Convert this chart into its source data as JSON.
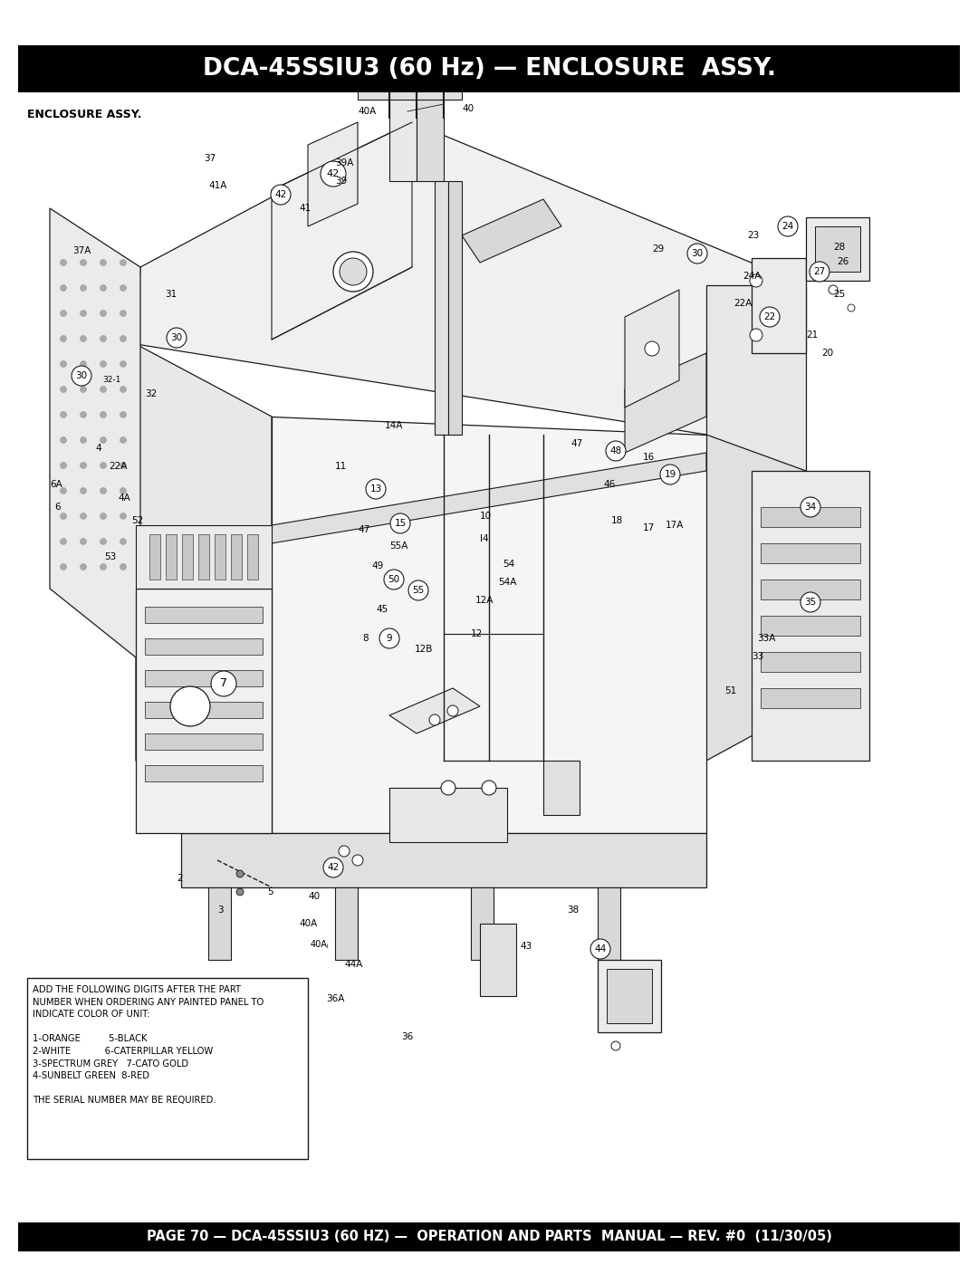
{
  "title": "DCA-45SSIU3 (60 Hz) — ENCLOSURE  ASSY.",
  "title_bg": "#000000",
  "title_color": "#ffffff",
  "title_fontsize": 19,
  "page_bg": "#ffffff",
  "subtitle": "ENCLOSURE ASSY.",
  "footer": "PAGE 70 — DCA-45SSIU3 (60 HZ) —  OPERATION AND PARTS  MANUAL — REV. #0  (11/30/05)",
  "footer_bg": "#000000",
  "footer_color": "#ffffff",
  "footer_fontsize": 10.5,
  "lc": "#1a1a1a",
  "legend_lines": [
    "ADD THE FOLLOWING DIGITS AFTER THE PART",
    "NUMBER WHEN ORDERING ANY PAINTED PANEL TO",
    "INDICATE COLOR OF UNIT:",
    "",
    "1-ORANGE          5-BLACK",
    "2-WHITE            6-CATERPILLAR YELLOW",
    "3-SPECTRUM GREY   7-CATO GOLD",
    "4-SUNBELT GREEN  8-RED",
    "",
    "THE SERIAL NUMBER MAY BE REQUIRED."
  ]
}
